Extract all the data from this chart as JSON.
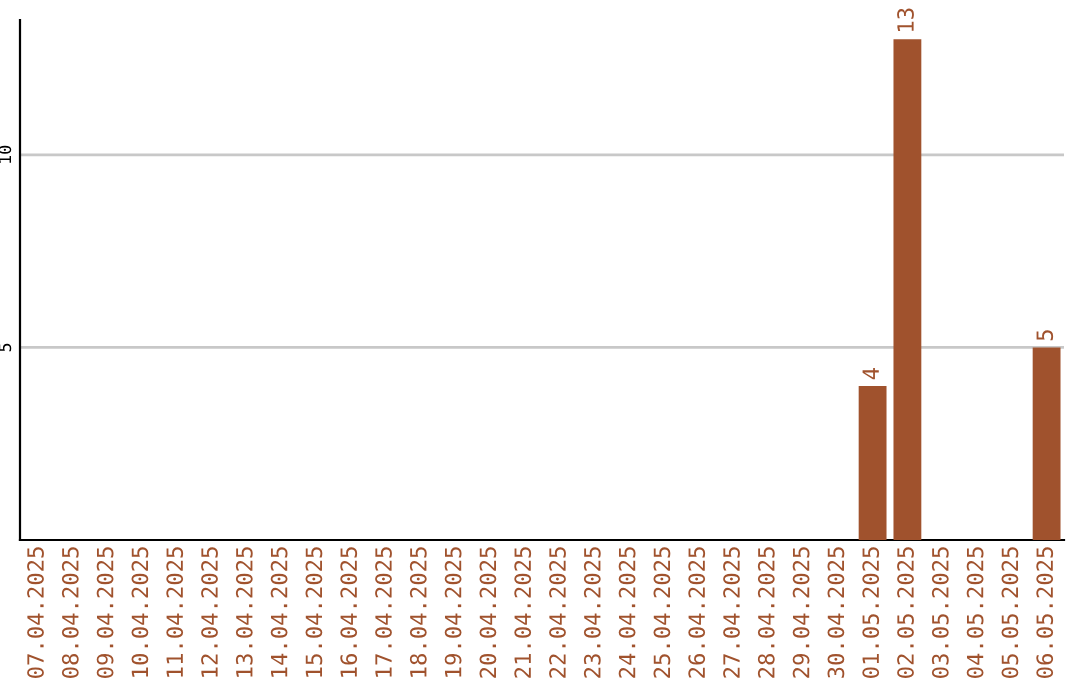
{
  "chart_data": {
    "type": "bar",
    "categories": [
      "07.04.2025",
      "08.04.2025",
      "09.04.2025",
      "10.04.2025",
      "11.04.2025",
      "12.04.2025",
      "13.04.2025",
      "14.04.2025",
      "15.04.2025",
      "16.04.2025",
      "17.04.2025",
      "18.04.2025",
      "19.04.2025",
      "20.04.2025",
      "21.04.2025",
      "22.04.2025",
      "23.04.2025",
      "24.04.2025",
      "25.04.2025",
      "26.04.2025",
      "27.04.2025",
      "28.04.2025",
      "29.04.2025",
      "30.04.2025",
      "01.05.2025",
      "02.05.2025",
      "03.05.2025",
      "04.05.2025",
      "05.05.2025",
      "06.05.2025"
    ],
    "values": [
      0,
      0,
      0,
      0,
      0,
      0,
      0,
      0,
      0,
      0,
      0,
      0,
      0,
      0,
      0,
      0,
      0,
      0,
      0,
      0,
      0,
      0,
      0,
      0,
      4,
      13,
      0,
      0,
      0,
      5
    ],
    "value_labels": [
      null,
      null,
      null,
      null,
      null,
      null,
      null,
      null,
      null,
      null,
      null,
      null,
      null,
      null,
      null,
      null,
      null,
      null,
      null,
      null,
      null,
      null,
      null,
      null,
      "4",
      "13",
      null,
      null,
      null,
      "5"
    ],
    "color": "#a0522d",
    "ylim": [
      0,
      13.5
    ],
    "yticks": [
      5,
      10
    ],
    "grid": "y"
  }
}
